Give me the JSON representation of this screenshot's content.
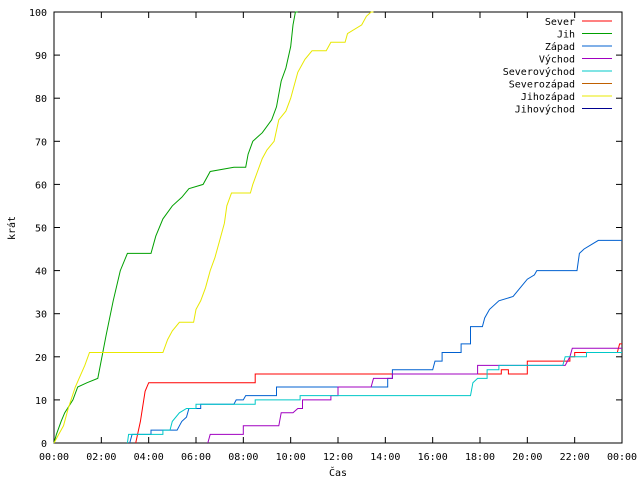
{
  "chart_data": {
    "type": "line",
    "title": "",
    "xlabel": "Čas",
    "ylabel": "krát",
    "xlim": [
      0,
      24
    ],
    "ylim": [
      0,
      100
    ],
    "x_ticks": [
      "00:00",
      "02:00",
      "04:00",
      "06:00",
      "08:00",
      "10:00",
      "12:00",
      "14:00",
      "16:00",
      "18:00",
      "20:00",
      "22:00",
      "00:00"
    ],
    "y_ticks": [
      0,
      10,
      20,
      30,
      40,
      50,
      60,
      70,
      80,
      90,
      100
    ],
    "x_unit": "hours since 00:00",
    "grid": false,
    "legend": "top-right",
    "step": true,
    "series": [
      {
        "name": "Sever",
        "color": "#ff0000",
        "points": [
          [
            3.45,
            0
          ],
          [
            3.65,
            5
          ],
          [
            3.85,
            12
          ],
          [
            4.0,
            14
          ],
          [
            8.5,
            14
          ],
          [
            8.5,
            16
          ],
          [
            18.9,
            16
          ],
          [
            18.9,
            17
          ],
          [
            19.2,
            17
          ],
          [
            19.2,
            16
          ],
          [
            20.0,
            16
          ],
          [
            20.0,
            19
          ],
          [
            21.8,
            19
          ],
          [
            21.8,
            20
          ],
          [
            22.0,
            20
          ],
          [
            22.0,
            21
          ],
          [
            23.8,
            21
          ],
          [
            23.9,
            23
          ],
          [
            24.0,
            23
          ]
        ]
      },
      {
        "name": "Jih",
        "color": "#00a000",
        "points": [
          [
            0,
            0
          ],
          [
            0.1,
            2
          ],
          [
            0.3,
            5
          ],
          [
            0.45,
            7
          ],
          [
            0.8,
            10
          ],
          [
            1.0,
            13
          ],
          [
            1.4,
            14
          ],
          [
            1.85,
            15
          ],
          [
            2.2,
            25
          ],
          [
            2.5,
            33
          ],
          [
            2.8,
            40
          ],
          [
            3.1,
            44
          ],
          [
            4.1,
            44
          ],
          [
            4.3,
            48
          ],
          [
            4.6,
            52
          ],
          [
            5.0,
            55
          ],
          [
            5.4,
            57
          ],
          [
            5.7,
            59
          ],
          [
            6.3,
            60
          ],
          [
            6.6,
            63
          ],
          [
            7.6,
            64
          ],
          [
            8.1,
            64
          ],
          [
            8.2,
            67
          ],
          [
            8.4,
            70
          ],
          [
            8.6,
            71
          ],
          [
            8.8,
            72
          ],
          [
            9.2,
            75
          ],
          [
            9.4,
            78
          ],
          [
            9.6,
            84
          ],
          [
            9.8,
            87
          ],
          [
            10.0,
            92
          ],
          [
            10.1,
            97
          ],
          [
            10.2,
            100
          ],
          [
            10.3,
            100
          ]
        ]
      },
      {
        "name": "Západ",
        "color": "#0060d0",
        "points": [
          [
            3.2,
            0
          ],
          [
            3.3,
            2
          ],
          [
            4.1,
            2
          ],
          [
            4.1,
            3
          ],
          [
            5.2,
            3
          ],
          [
            5.3,
            4
          ],
          [
            5.4,
            5
          ],
          [
            5.6,
            6
          ],
          [
            5.7,
            8
          ],
          [
            6.2,
            8
          ],
          [
            6.2,
            9
          ],
          [
            7.6,
            9
          ],
          [
            7.7,
            10
          ],
          [
            8.0,
            10
          ],
          [
            8.1,
            11
          ],
          [
            9.4,
            11
          ],
          [
            9.4,
            13
          ],
          [
            14.1,
            13
          ],
          [
            14.1,
            15
          ],
          [
            14.3,
            15
          ],
          [
            14.3,
            17
          ],
          [
            16.0,
            17
          ],
          [
            16.1,
            19
          ],
          [
            16.4,
            19
          ],
          [
            16.4,
            21
          ],
          [
            17.2,
            21
          ],
          [
            17.2,
            23
          ],
          [
            17.6,
            23
          ],
          [
            17.6,
            27
          ],
          [
            18.1,
            27
          ],
          [
            18.2,
            29
          ],
          [
            18.4,
            31
          ],
          [
            18.8,
            33
          ],
          [
            19.4,
            34
          ],
          [
            19.7,
            36
          ],
          [
            20.0,
            38
          ],
          [
            20.3,
            39
          ],
          [
            20.4,
            40
          ],
          [
            22.1,
            40
          ],
          [
            22.2,
            44
          ],
          [
            22.4,
            45
          ],
          [
            22.7,
            46
          ],
          [
            23.0,
            47
          ],
          [
            24.0,
            47
          ]
        ]
      },
      {
        "name": "Východ",
        "color": "#a000c0",
        "points": [
          [
            6.5,
            0
          ],
          [
            6.6,
            2
          ],
          [
            8.0,
            2
          ],
          [
            8.0,
            4
          ],
          [
            9.5,
            4
          ],
          [
            9.6,
            7
          ],
          [
            10.1,
            7
          ],
          [
            10.3,
            8
          ],
          [
            10.5,
            8
          ],
          [
            10.5,
            10
          ],
          [
            11.7,
            10
          ],
          [
            11.7,
            11
          ],
          [
            12.0,
            11
          ],
          [
            12.0,
            13
          ],
          [
            13.4,
            13
          ],
          [
            13.5,
            15
          ],
          [
            14.3,
            15
          ],
          [
            14.3,
            16
          ],
          [
            17.9,
            16
          ],
          [
            17.9,
            18
          ],
          [
            21.6,
            18
          ],
          [
            21.8,
            20
          ],
          [
            21.9,
            22
          ],
          [
            23.8,
            22
          ],
          [
            24.0,
            22
          ]
        ]
      },
      {
        "name": "Severovýchod",
        "color": "#00c8c8",
        "points": [
          [
            3.1,
            0
          ],
          [
            3.15,
            2
          ],
          [
            4.6,
            2
          ],
          [
            4.6,
            3
          ],
          [
            4.9,
            3
          ],
          [
            5.0,
            5
          ],
          [
            5.3,
            7
          ],
          [
            5.6,
            8
          ],
          [
            6.0,
            8
          ],
          [
            6.0,
            9
          ],
          [
            8.5,
            9
          ],
          [
            8.5,
            10
          ],
          [
            10.4,
            10
          ],
          [
            10.4,
            11
          ],
          [
            17.6,
            11
          ],
          [
            17.7,
            14
          ],
          [
            17.9,
            15
          ],
          [
            18.3,
            15
          ],
          [
            18.3,
            17
          ],
          [
            18.8,
            17
          ],
          [
            18.8,
            18
          ],
          [
            21.5,
            18
          ],
          [
            21.6,
            20
          ],
          [
            22.5,
            20
          ],
          [
            22.5,
            21
          ],
          [
            24.0,
            21
          ]
        ]
      },
      {
        "name": "Severozápad",
        "color": "#c06000",
        "points": []
      },
      {
        "name": "Jihozápad",
        "color": "#e8e800",
        "points": [
          [
            0,
            0
          ],
          [
            0.2,
            2
          ],
          [
            0.4,
            4
          ],
          [
            0.6,
            8
          ],
          [
            0.9,
            13
          ],
          [
            1.3,
            18
          ],
          [
            1.5,
            21
          ],
          [
            4.6,
            21
          ],
          [
            4.8,
            24
          ],
          [
            5.0,
            26
          ],
          [
            5.3,
            28
          ],
          [
            5.9,
            28
          ],
          [
            6.0,
            31
          ],
          [
            6.2,
            33
          ],
          [
            6.4,
            36
          ],
          [
            6.6,
            40
          ],
          [
            6.8,
            43
          ],
          [
            7.0,
            47
          ],
          [
            7.2,
            51
          ],
          [
            7.3,
            55
          ],
          [
            7.5,
            58
          ],
          [
            8.3,
            58
          ],
          [
            8.4,
            60
          ],
          [
            8.6,
            63
          ],
          [
            8.8,
            66
          ],
          [
            9.0,
            68
          ],
          [
            9.3,
            70
          ],
          [
            9.5,
            75
          ],
          [
            9.8,
            77
          ],
          [
            10.0,
            80
          ],
          [
            10.3,
            86
          ],
          [
            10.6,
            89
          ],
          [
            10.9,
            91
          ],
          [
            11.5,
            91
          ],
          [
            11.7,
            93
          ],
          [
            12.3,
            93
          ],
          [
            12.4,
            95
          ],
          [
            13.0,
            97
          ],
          [
            13.2,
            99
          ],
          [
            13.4,
            100
          ],
          [
            13.5,
            100
          ]
        ]
      },
      {
        "name": "Jihovýchod",
        "color": "#000090",
        "points": []
      }
    ]
  }
}
